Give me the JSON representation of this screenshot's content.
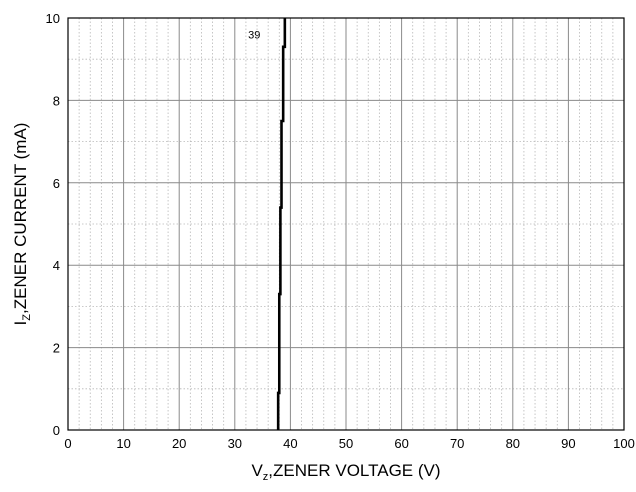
{
  "chart_data": {
    "type": "line",
    "xlabel": {
      "main": "V",
      "sub": "z",
      "rest": ",ZENER VOLTAGE (V)"
    },
    "ylabel": {
      "main": "I",
      "sub": "Z",
      "rest": ",ZENER CURRENT (mA)"
    },
    "xlim": [
      0,
      100
    ],
    "ylim": [
      0,
      10
    ],
    "x_ticks": [
      0,
      10,
      20,
      30,
      40,
      50,
      60,
      70,
      80,
      90,
      100
    ],
    "y_ticks": [
      0,
      2,
      4,
      6,
      8,
      10
    ],
    "x_minor_step": 2,
    "y_minor_step": 1,
    "grid": true,
    "series": [
      {
        "label": "39",
        "color": "#000000",
        "points": [
          [
            37.8,
            0.0
          ],
          [
            37.8,
            0.9
          ],
          [
            38.0,
            0.9
          ],
          [
            38.0,
            3.3
          ],
          [
            38.2,
            3.3
          ],
          [
            38.2,
            5.4
          ],
          [
            38.4,
            5.4
          ],
          [
            38.4,
            7.5
          ],
          [
            38.7,
            7.5
          ],
          [
            38.7,
            9.3
          ],
          [
            39.0,
            9.3
          ],
          [
            39.0,
            10.0
          ]
        ],
        "label_at": [
          33.5,
          9.5
        ]
      }
    ]
  }
}
